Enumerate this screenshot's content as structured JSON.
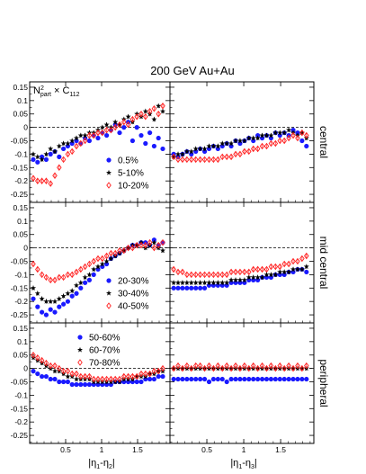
{
  "title": "200 GeV Au+Au",
  "panel_label": {
    "main": "N",
    "sup": "2",
    "sub": "part",
    "tail": " × C",
    "tail_sub": "112"
  },
  "xlabel_left": "|η1-η2|",
  "xlabel_right": "|η1-η3|",
  "colors": {
    "series_a": "#1a1aff",
    "series_b": "#000000",
    "series_c": "#ff2020"
  },
  "chart_data": {
    "type": "scatter",
    "xlim": [
      0.0,
      1.95
    ],
    "ylim": [
      -0.28,
      0.17
    ],
    "x_ticks": [
      0.5,
      1,
      1.5
    ],
    "x_tick_labels": [
      "0.5",
      "1",
      "1.5"
    ],
    "y_ticks": [
      0.15,
      0.1,
      0.05,
      0,
      -0.05,
      -0.1,
      -0.15,
      -0.2,
      -0.25
    ],
    "y_tick_labels": [
      "0.15",
      "0.1",
      "0.05",
      "0",
      "-0.05",
      "-0.1",
      "-0.15",
      "-0.2",
      "-0.25"
    ],
    "rows": [
      {
        "label": "central",
        "legend": [
          "0.5%",
          "5-10%",
          "10-20%"
        ],
        "left": [
          {
            "name": "0.5%",
            "marker": "circle",
            "x0": 0.05,
            "dx": 0.06,
            "y": [
              -0.12,
              -0.13,
              -0.11,
              -0.12,
              -0.1,
              -0.09,
              -0.11,
              -0.08,
              -0.07,
              -0.06,
              -0.05,
              -0.06,
              -0.04,
              -0.05,
              -0.03,
              -0.04,
              -0.02,
              -0.03,
              -0.01,
              0.01,
              -0.02,
              0.0,
              0.02,
              -0.05,
              0.0,
              -0.03,
              -0.06,
              -0.02,
              -0.07,
              -0.04,
              -0.08
            ]
          },
          {
            "name": "5-10%",
            "marker": "star",
            "x0": 0.05,
            "dx": 0.06,
            "y": [
              -0.1,
              -0.11,
              -0.12,
              -0.1,
              -0.08,
              -0.09,
              -0.07,
              -0.06,
              -0.06,
              -0.05,
              -0.04,
              -0.03,
              -0.03,
              -0.02,
              -0.02,
              -0.01,
              0.0,
              0.01,
              0.0,
              0.02,
              0.01,
              0.03,
              0.04,
              0.02,
              0.05,
              0.04,
              0.06,
              0.05,
              0.03,
              0.08,
              0.06
            ]
          },
          {
            "name": "10-20%",
            "marker": "diamond",
            "x0": 0.05,
            "dx": 0.06,
            "y": [
              -0.19,
              -0.2,
              -0.2,
              -0.2,
              -0.21,
              -0.18,
              -0.15,
              -0.12,
              -0.1,
              -0.09,
              -0.07,
              -0.06,
              -0.05,
              -0.03,
              -0.03,
              -0.02,
              -0.02,
              -0.01,
              -0.01,
              0.0,
              0.01,
              0.02,
              0.01,
              0.03,
              0.04,
              0.05,
              0.04,
              0.06,
              0.07,
              0.05,
              0.08
            ]
          }
        ],
        "right": [
          {
            "name": "0.5%",
            "marker": "circle",
            "x0": 0.05,
            "dx": 0.06,
            "y": [
              -0.1,
              -0.11,
              -0.1,
              -0.09,
              -0.1,
              -0.09,
              -0.08,
              -0.09,
              -0.08,
              -0.07,
              -0.08,
              -0.07,
              -0.06,
              -0.07,
              -0.05,
              -0.06,
              -0.05,
              -0.04,
              -0.05,
              -0.03,
              -0.04,
              -0.03,
              -0.04,
              -0.02,
              -0.03,
              -0.02,
              -0.03,
              -0.01,
              -0.02,
              -0.05,
              -0.07
            ]
          },
          {
            "name": "5-10%",
            "marker": "star",
            "x0": 0.05,
            "dx": 0.06,
            "y": [
              -0.11,
              -0.1,
              -0.1,
              -0.09,
              -0.09,
              -0.08,
              -0.08,
              -0.08,
              -0.07,
              -0.07,
              -0.07,
              -0.06,
              -0.06,
              -0.06,
              -0.05,
              -0.05,
              -0.05,
              -0.04,
              -0.04,
              -0.04,
              -0.03,
              -0.03,
              -0.03,
              -0.02,
              -0.02,
              -0.02,
              -0.01,
              -0.02,
              -0.03,
              -0.02,
              -0.04
            ]
          },
          {
            "name": "10-20%",
            "marker": "diamond",
            "x0": 0.05,
            "dx": 0.06,
            "y": [
              -0.11,
              -0.12,
              -0.12,
              -0.12,
              -0.12,
              -0.12,
              -0.12,
              -0.12,
              -0.12,
              -0.12,
              -0.12,
              -0.11,
              -0.11,
              -0.11,
              -0.1,
              -0.1,
              -0.09,
              -0.09,
              -0.08,
              -0.08,
              -0.07,
              -0.07,
              -0.06,
              -0.06,
              -0.05,
              -0.05,
              -0.04,
              -0.03,
              -0.04,
              -0.02,
              -0.03
            ]
          }
        ]
      },
      {
        "label": "mid central",
        "legend": [
          "20-30%",
          "30-40%",
          "40-50%"
        ],
        "left": [
          {
            "name": "20-30%",
            "marker": "circle",
            "x0": 0.05,
            "dx": 0.06,
            "y": [
              -0.19,
              -0.22,
              -0.24,
              -0.25,
              -0.23,
              -0.24,
              -0.22,
              -0.21,
              -0.2,
              -0.18,
              -0.17,
              -0.15,
              -0.13,
              -0.12,
              -0.1,
              -0.08,
              -0.07,
              -0.06,
              -0.04,
              -0.03,
              -0.02,
              -0.01,
              0.0,
              0.01,
              0.01,
              0.02,
              0.02,
              0.01,
              0.03,
              0.01,
              0.02
            ]
          },
          {
            "name": "30-40%",
            "marker": "star",
            "x0": 0.05,
            "dx": 0.06,
            "y": [
              -0.15,
              -0.17,
              -0.19,
              -0.2,
              -0.2,
              -0.2,
              -0.19,
              -0.18,
              -0.17,
              -0.16,
              -0.14,
              -0.13,
              -0.11,
              -0.1,
              -0.08,
              -0.07,
              -0.06,
              -0.05,
              -0.04,
              -0.03,
              -0.02,
              -0.01,
              0.0,
              0.01,
              0.01,
              0.02,
              0.0,
              0.01,
              0.02,
              0.0,
              -0.01
            ]
          },
          {
            "name": "40-50%",
            "marker": "diamond",
            "x0": 0.05,
            "dx": 0.06,
            "y": [
              -0.06,
              -0.08,
              -0.1,
              -0.11,
              -0.12,
              -0.12,
              -0.11,
              -0.11,
              -0.1,
              -0.1,
              -0.09,
              -0.08,
              -0.07,
              -0.06,
              -0.05,
              -0.04,
              -0.04,
              -0.03,
              -0.02,
              -0.02,
              -0.01,
              -0.01,
              0.0,
              0.0,
              0.01,
              0.01,
              0.01,
              0.02,
              0.0,
              0.01,
              0.02
            ]
          }
        ],
        "right": [
          {
            "name": "20-30%",
            "marker": "circle",
            "x0": 0.05,
            "dx": 0.06,
            "y": [
              -0.15,
              -0.15,
              -0.15,
              -0.15,
              -0.15,
              -0.15,
              -0.15,
              -0.15,
              -0.14,
              -0.14,
              -0.14,
              -0.14,
              -0.14,
              -0.13,
              -0.13,
              -0.13,
              -0.13,
              -0.12,
              -0.12,
              -0.12,
              -0.11,
              -0.11,
              -0.11,
              -0.1,
              -0.1,
              -0.1,
              -0.09,
              -0.09,
              -0.08,
              -0.08,
              -0.09
            ]
          },
          {
            "name": "30-40%",
            "marker": "star",
            "x0": 0.05,
            "dx": 0.06,
            "y": [
              -0.13,
              -0.13,
              -0.13,
              -0.13,
              -0.13,
              -0.13,
              -0.13,
              -0.13,
              -0.13,
              -0.13,
              -0.13,
              -0.13,
              -0.13,
              -0.12,
              -0.12,
              -0.12,
              -0.12,
              -0.11,
              -0.11,
              -0.11,
              -0.11,
              -0.1,
              -0.1,
              -0.1,
              -0.09,
              -0.09,
              -0.09,
              -0.08,
              -0.08,
              -0.08,
              -0.07
            ]
          },
          {
            "name": "40-50%",
            "marker": "diamond",
            "x0": 0.05,
            "dx": 0.06,
            "y": [
              -0.08,
              -0.09,
              -0.09,
              -0.1,
              -0.1,
              -0.1,
              -0.1,
              -0.1,
              -0.1,
              -0.1,
              -0.1,
              -0.1,
              -0.1,
              -0.09,
              -0.09,
              -0.09,
              -0.09,
              -0.09,
              -0.08,
              -0.08,
              -0.08,
              -0.08,
              -0.07,
              -0.07,
              -0.07,
              -0.06,
              -0.06,
              -0.05,
              -0.05,
              -0.04,
              -0.03
            ]
          }
        ]
      },
      {
        "label": "peripheral",
        "legend": [
          "50-60%",
          "60-70%",
          "70-80%"
        ],
        "left": [
          {
            "name": "50-60%",
            "marker": "circle",
            "x0": 0.05,
            "dx": 0.06,
            "y": [
              -0.01,
              -0.02,
              -0.03,
              -0.03,
              -0.04,
              -0.04,
              -0.05,
              -0.05,
              -0.05,
              -0.06,
              -0.06,
              -0.06,
              -0.06,
              -0.06,
              -0.06,
              -0.06,
              -0.06,
              -0.06,
              -0.06,
              -0.05,
              -0.05,
              -0.05,
              -0.05,
              -0.05,
              -0.05,
              -0.05,
              -0.04,
              -0.04,
              -0.04,
              -0.03,
              -0.03
            ]
          },
          {
            "name": "60-70%",
            "marker": "star",
            "x0": 0.05,
            "dx": 0.06,
            "y": [
              0.04,
              0.03,
              0.02,
              0.01,
              0.0,
              -0.01,
              -0.01,
              -0.02,
              -0.03,
              -0.03,
              -0.04,
              -0.04,
              -0.04,
              -0.04,
              -0.05,
              -0.05,
              -0.05,
              -0.05,
              -0.05,
              -0.05,
              -0.05,
              -0.04,
              -0.04,
              -0.04,
              -0.03,
              -0.03,
              -0.03,
              -0.02,
              -0.02,
              -0.01,
              -0.01
            ]
          },
          {
            "name": "70-80%",
            "marker": "diamond",
            "x0": 0.05,
            "dx": 0.06,
            "y": [
              0.05,
              0.04,
              0.03,
              0.02,
              0.01,
              0.01,
              0.0,
              -0.01,
              -0.01,
              -0.02,
              -0.02,
              -0.03,
              -0.03,
              -0.03,
              -0.04,
              -0.04,
              -0.04,
              -0.04,
              -0.04,
              -0.04,
              -0.04,
              -0.03,
              -0.03,
              -0.03,
              -0.03,
              -0.02,
              -0.02,
              -0.02,
              -0.01,
              -0.01,
              0.0
            ]
          }
        ],
        "right": [
          {
            "name": "50-60%",
            "marker": "circle",
            "x0": 0.05,
            "dx": 0.06,
            "y": [
              -0.04,
              -0.04,
              -0.04,
              -0.04,
              -0.04,
              -0.04,
              -0.04,
              -0.04,
              -0.05,
              -0.04,
              -0.04,
              -0.04,
              -0.05,
              -0.04,
              -0.04,
              -0.04,
              -0.04,
              -0.04,
              -0.04,
              -0.04,
              -0.04,
              -0.04,
              -0.04,
              -0.04,
              -0.04,
              -0.04,
              -0.04,
              -0.04,
              -0.04,
              -0.04,
              -0.04
            ]
          },
          {
            "name": "60-70%",
            "marker": "star",
            "x0": 0.05,
            "dx": 0.06,
            "y": [
              0.0,
              0.0,
              0.0,
              0.0,
              0.0,
              0.0,
              0.0,
              0.0,
              0.0,
              0.0,
              0.0,
              0.0,
              0.0,
              0.0,
              0.0,
              0.0,
              0.0,
              0.0,
              0.0,
              0.0,
              0.0,
              0.0,
              0.0,
              0.0,
              0.0,
              0.0,
              0.0,
              0.0,
              0.0,
              0.0,
              0.0
            ]
          },
          {
            "name": "70-80%",
            "marker": "diamond",
            "x0": 0.05,
            "dx": 0.06,
            "y": [
              0.0,
              0.01,
              0.0,
              0.01,
              0.0,
              0.01,
              0.01,
              0.0,
              0.01,
              0.0,
              0.01,
              0.0,
              0.01,
              0.0,
              0.01,
              0.0,
              0.01,
              0.0,
              0.01,
              0.0,
              0.01,
              0.0,
              0.01,
              0.0,
              0.01,
              0.0,
              0.01,
              0.0,
              0.01,
              0.0,
              0.01
            ]
          }
        ]
      }
    ]
  }
}
